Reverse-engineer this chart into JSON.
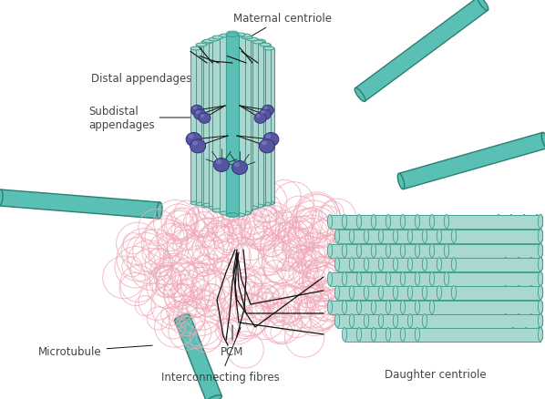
{
  "background_color": "#ffffff",
  "teal_face": "#a8d8d0",
  "teal_edge": "#3a9e90",
  "teal_mid": "#5abfb5",
  "teal_dark": "#2a8070",
  "pink_color": "#f0a8b8",
  "purple_color": "#5555a0",
  "purple_edge": "#333380",
  "black_line": "#111111",
  "label_color": "#444444",
  "labels": {
    "maternal_centriole": "Maternal centriole",
    "distal_appendages": "Distal appendages",
    "subdistal_appendages": "Subdistal\nappendages",
    "pcm": "PCM",
    "microtubule": "Microtubule",
    "interconnecting_fibres": "Interconnecting fibres",
    "daughter_centriole": "Daughter centriole"
  },
  "figsize": [
    5.98,
    4.39
  ],
  "dpi": 100
}
